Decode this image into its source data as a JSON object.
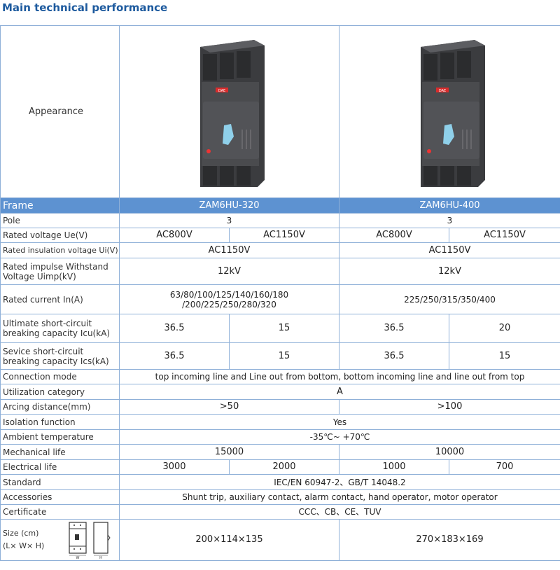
{
  "title": "Main technical performance",
  "rows": {
    "appearance": "Appearance",
    "frame": {
      "label": "Frame",
      "a": "ZAM6HU-320",
      "b": "ZAM6HU-400"
    },
    "pole": {
      "label": "Pole",
      "a": "3",
      "b": "3"
    },
    "ue": {
      "label": "Rated voltage Ue(V)",
      "v": [
        "AC800V",
        "AC1150V",
        "AC800V",
        "AC1150V"
      ]
    },
    "ui": {
      "label": "Rated insulation voltage Ui(V)",
      "a": "AC1150V",
      "b": "AC1150V"
    },
    "uimp": {
      "label1": "Rated  impulse Withstand",
      "label2": "Voltage Uimp(kV)",
      "a": "12kV",
      "b": "12kV"
    },
    "current": {
      "label": "Rated  current In(A)",
      "a1": "63/80/100/125/140/160/180",
      "a2": "/200/225/250/280/320",
      "b": "225/250/315/350/400"
    },
    "icu": {
      "label1": "Ultimate short-circuit",
      "label2": "breaking capacity Icu(kA)",
      "v": [
        "36.5",
        "15",
        "36.5",
        "20"
      ]
    },
    "ics": {
      "label1": "Sevice short-circuit",
      "label2": "breaking capacity Ics(kA)",
      "v": [
        "36.5",
        "15",
        "36.5",
        "15"
      ]
    },
    "connection": {
      "label": "Connection mode",
      "v": "top incoming line and Line out from bottom, bottom incoming line and line out from top"
    },
    "utilization": {
      "label": "Utilization category",
      "v": "A"
    },
    "arcing": {
      "label": "Arcing distance(mm)",
      "a": ">50",
      "b": ">100"
    },
    "isolation": {
      "label": "Isolation function",
      "v": "Yes"
    },
    "ambient": {
      "label": "Ambient temperature",
      "v": "-35℃~ +70℃"
    },
    "mechanical": {
      "label": "Mechanical life",
      "a": "15000",
      "b": "10000"
    },
    "electrical": {
      "label": "Electrical life",
      "v": [
        "3000",
        "2000",
        "1000",
        "700"
      ]
    },
    "standard": {
      "label": "Standard",
      "v": "IEC/EN 60947-2、GB/T 14048.2"
    },
    "accessories": {
      "label": "Accessories",
      "v": "Shunt trip, auxiliary contact, alarm contact, hand operator, motor operator"
    },
    "certificate": {
      "label": "Certificate",
      "v": "CCC、CB、CE、TUV"
    },
    "size": {
      "label1": "Size (cm)",
      "label2": "(L× W× H)",
      "a": "200×114×135",
      "b": "270×183×169",
      "dim_w": "W",
      "dim_h": "H"
    }
  },
  "product_logo": "DAE",
  "colors": {
    "header_bg": "#5d92d1",
    "border": "#8fb0d8",
    "title": "#1d5a9e",
    "body": "#4a4b4e",
    "handle": "#8fd0ea"
  }
}
